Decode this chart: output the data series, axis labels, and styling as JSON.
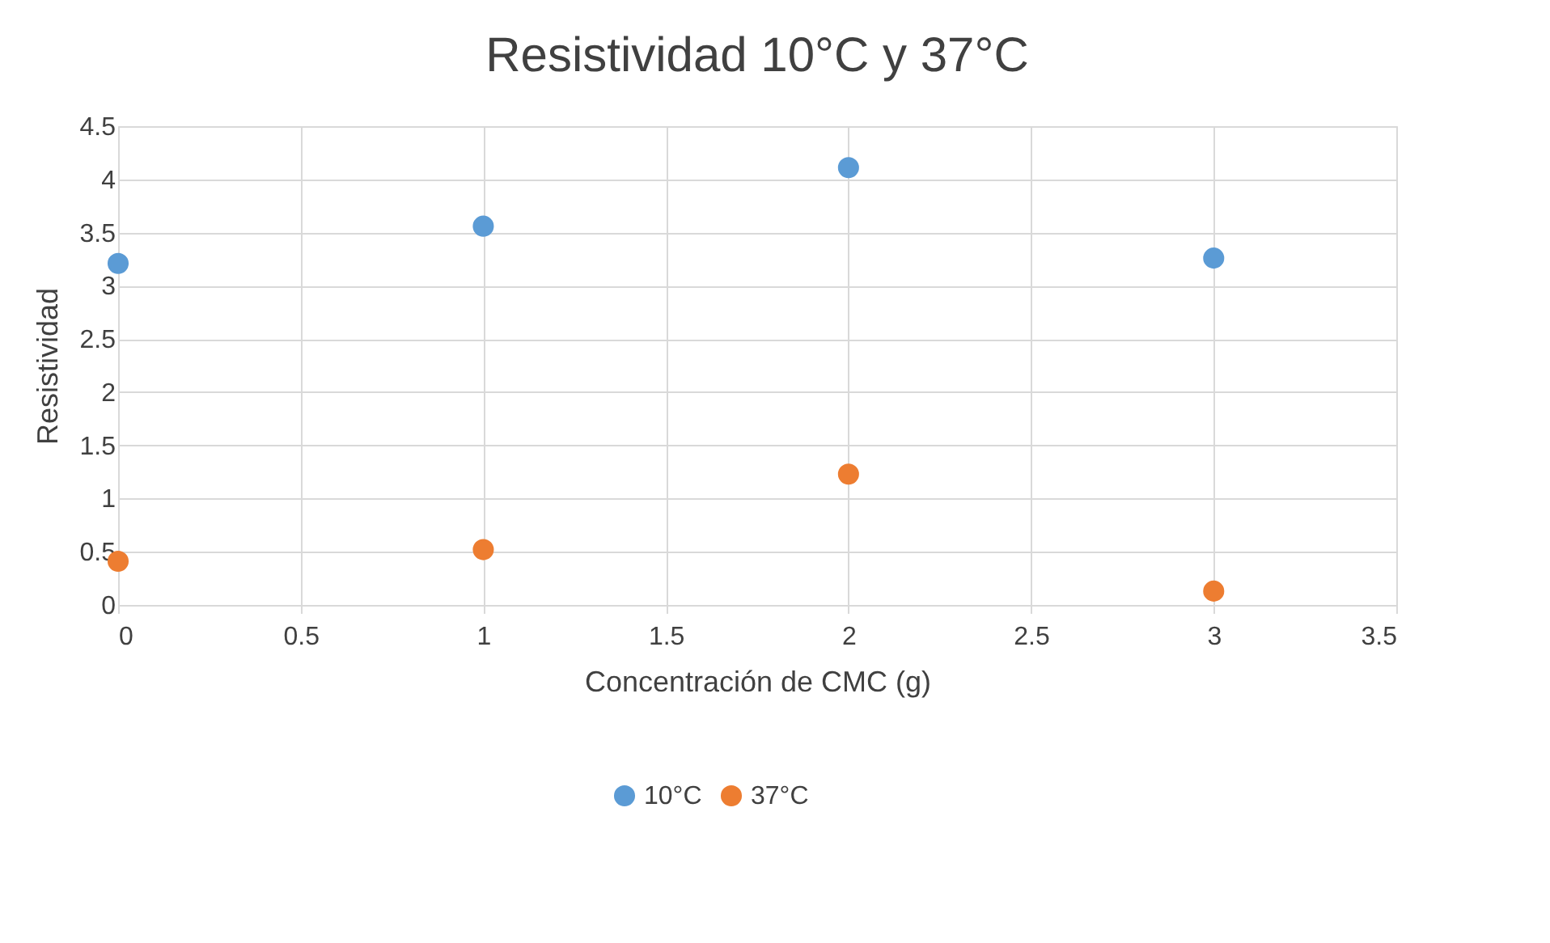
{
  "chart_data": {
    "type": "scatter",
    "title": "Resistividad 10°C y 37°C",
    "xlabel": "Concentración de CMC (g)",
    "ylabel": "Resistividad",
    "x": [
      0,
      1,
      2,
      3
    ],
    "series": [
      {
        "name": "10°C",
        "color": "#5b9bd5",
        "values": [
          3.21,
          3.56,
          4.11,
          3.26
        ]
      },
      {
        "name": "37°C",
        "color": "#ed7d31",
        "values": [
          0.41,
          0.52,
          1.23,
          0.13
        ]
      }
    ],
    "xlim": [
      0,
      3.5
    ],
    "xticks": [
      0,
      0.5,
      1,
      1.5,
      2,
      2.5,
      3,
      3.5
    ],
    "ylim": [
      0,
      4.5
    ],
    "yticks": [
      0,
      0.5,
      1,
      1.5,
      2,
      2.5,
      3,
      3.5,
      4,
      4.5
    ],
    "grid": true,
    "legend": "bottom",
    "marker": "circle"
  }
}
